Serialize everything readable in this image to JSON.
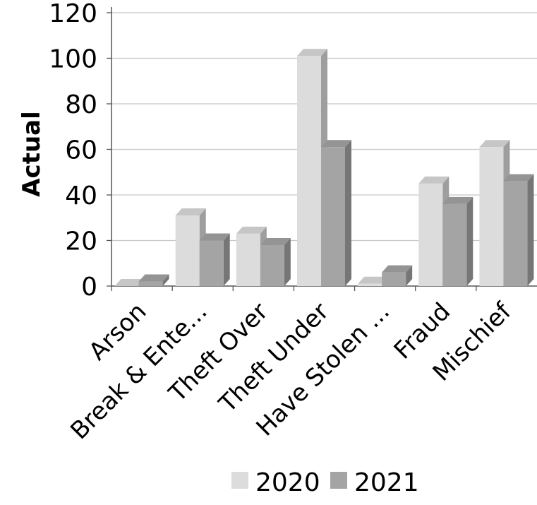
{
  "chart_data": {
    "type": "bar",
    "ylabel": "Actual",
    "xlabel": "",
    "ylim": [
      0,
      120
    ],
    "yticks": [
      0,
      20,
      40,
      60,
      80,
      100,
      120
    ],
    "grid": true,
    "legend_position": "bottom",
    "categories": [
      "Arson",
      "Break & Ente...",
      "Theft Over",
      "Theft Under",
      "Have Stolen ...",
      "Fraud",
      "Mischief"
    ],
    "series": [
      {
        "name": "2020",
        "color": "#dcdcdc",
        "values": [
          0,
          31,
          23,
          101,
          1,
          45,
          61
        ]
      },
      {
        "name": "2021",
        "color": "#a4a4a4",
        "values": [
          2,
          20,
          18,
          61,
          6,
          36,
          46
        ]
      }
    ]
  }
}
